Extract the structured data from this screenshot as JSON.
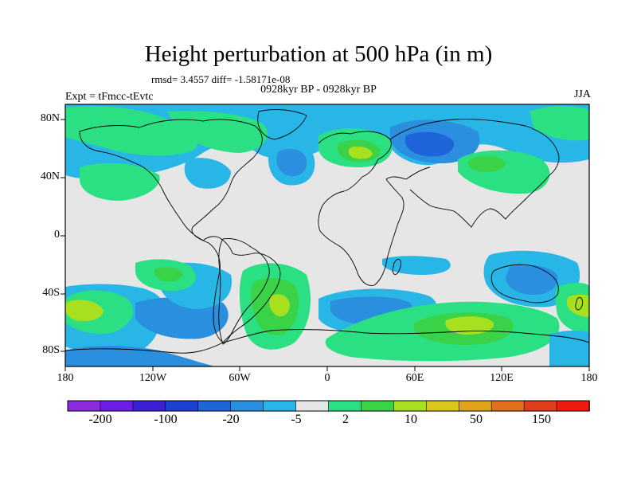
{
  "title": "Height perturbation at 500 hPa (in m)",
  "stats": "rmsd= 3.4557 diff= -1.58171e-08",
  "period": "0928kyr BP - 0928kyr BP",
  "expt": "Expt = tFmcc-tEvtc",
  "season": "JJA",
  "lat_labels": [
    "80N",
    "40N",
    "0",
    "40S",
    "80S"
  ],
  "lon_labels": [
    "180",
    "120W",
    "60W",
    "0",
    "60E",
    "120E",
    "180"
  ],
  "colorbar": {
    "colors": [
      "#8a2be2",
      "#6a1ee8",
      "#3b1fd6",
      "#1d3fd4",
      "#1f64d8",
      "#2b8fe0",
      "#28b6e6",
      "#e6e6e6",
      "#2be083",
      "#3ad246",
      "#a8e020",
      "#d8c81a",
      "#e0a41a",
      "#e0701c",
      "#e03c1e",
      "#f01a14"
    ],
    "labels": [
      "-200",
      "-100",
      "-20",
      "-5",
      "2",
      "10",
      "50",
      "150"
    ]
  },
  "legend_colors": {
    "ocean": "#e6e6e6",
    "cyan": "#28b6e6",
    "lightblue": "#2b8fe0",
    "blue": "#1f64d8",
    "green": "#2be083",
    "lime": "#3ad246",
    "yellowgreen": "#a8e020",
    "gold": "#d8c81a"
  }
}
